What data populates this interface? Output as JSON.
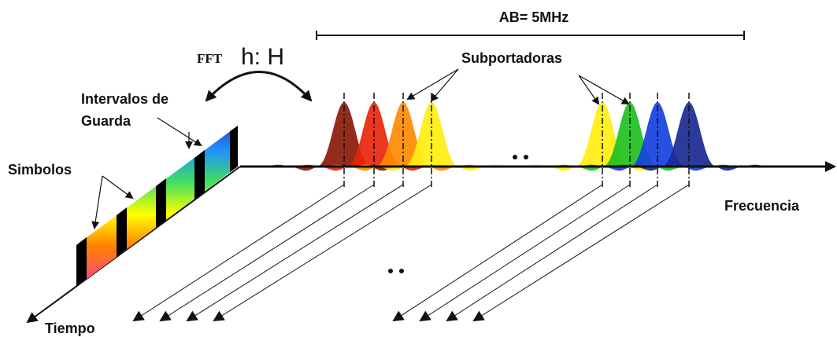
{
  "header": {
    "bandwidth": "AB= 5MHz",
    "fft": "FFT",
    "transform": "h: H"
  },
  "labels": {
    "subcarriers": "Subportadoras",
    "guard": [
      "Intervalos de",
      "Guarda"
    ],
    "symbols": "Simbolos",
    "frequency": "Frecuencia",
    "time": "Tiempo"
  }
}
